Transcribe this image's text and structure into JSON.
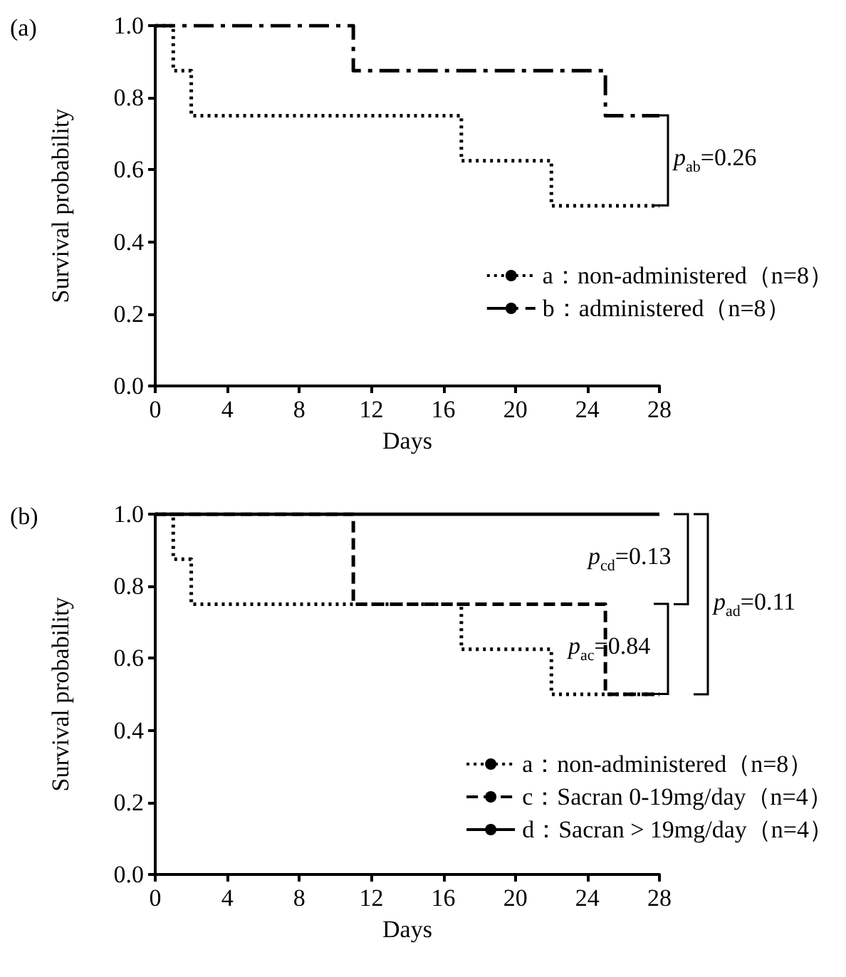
{
  "chart_data": [
    {
      "type": "step",
      "title": "(a)",
      "xlabel": "Days",
      "ylabel": "Survival probability",
      "xlim": [
        0,
        28
      ],
      "xticks": [
        0,
        4,
        8,
        12,
        16,
        20,
        24,
        28
      ],
      "ylim": [
        0,
        1
      ],
      "yticks": [
        {
          "value": 0,
          "label": "0.0"
        },
        {
          "value": 0.2,
          "label": "0.2"
        },
        {
          "value": 0.4,
          "label": "0.4"
        },
        {
          "value": 0.6,
          "label": "0.6"
        },
        {
          "value": 0.8,
          "label": "0.8"
        },
        {
          "value": 1,
          "label": "1.0"
        }
      ],
      "grid": false,
      "legend": "right",
      "series": [
        {
          "name": "a：non-administered（n=8）",
          "color": "#000000",
          "line_style": "dotted",
          "x": [
            0,
            1,
            2,
            17,
            22,
            28
          ],
          "values": [
            1,
            0.875,
            0.75,
            0.625,
            0.5,
            0.5
          ]
        },
        {
          "name": "b：administered（n=8）",
          "color": "#000000",
          "line_style": "dashdot",
          "x": [
            0,
            11,
            25,
            28
          ],
          "values": [
            1,
            0.875,
            0.75,
            0.75
          ]
        }
      ],
      "annotations": [
        "p$_{ab}$=0.26"
      ]
    },
    {
      "type": "step",
      "title": "(b)",
      "xlabel": "Days",
      "ylabel": "Survival probability",
      "xlim": [
        0,
        28
      ],
      "xticks": [
        0,
        4,
        8,
        12,
        16,
        20,
        24,
        28
      ],
      "ylim": [
        0,
        1
      ],
      "yticks": [
        {
          "value": 0,
          "label": "0.0"
        },
        {
          "value": 0.2,
          "label": "0.2"
        },
        {
          "value": 0.4,
          "label": "0.4"
        },
        {
          "value": 0.6,
          "label": "0.6"
        },
        {
          "value": 0.8,
          "label": "0.8"
        },
        {
          "value": 1,
          "label": "1.0"
        }
      ],
      "grid": false,
      "legend": "right",
      "series": [
        {
          "name": "a：non-administered（n=8）",
          "color": "#000000",
          "line_style": "dotted",
          "x": [
            0,
            1,
            2,
            17,
            22,
            28
          ],
          "values": [
            1,
            0.875,
            0.75,
            0.625,
            0.5,
            0.5
          ]
        },
        {
          "name": "c：Sacran 0-19mg/day（n=4）",
          "color": "#000000",
          "line_style": "dashed",
          "x": [
            0,
            11,
            25,
            28
          ],
          "values": [
            1,
            0.75,
            0.5,
            0.5
          ]
        },
        {
          "name": "d：Sacran > 19mg/day（n=4）",
          "color": "#000000",
          "line_style": "solid",
          "x": [
            0,
            28
          ],
          "values": [
            1,
            1
          ]
        }
      ],
      "annotations": [
        "p$_{ac}$=0.84",
        "p$_{cd}$=0.13",
        "p$_{ad}$=0.11"
      ]
    }
  ]
}
